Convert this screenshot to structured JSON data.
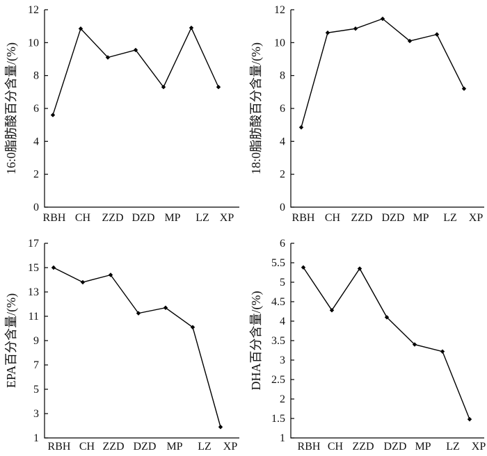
{
  "chart_data": [
    {
      "type": "line",
      "categories": [
        "RBH",
        "CH",
        "ZZD",
        "DZD",
        "MP",
        "LZ",
        "XP"
      ],
      "values": [
        5.6,
        10.85,
        9.1,
        9.55,
        7.3,
        10.9,
        7.3
      ],
      "ylabel": "16:0脂肪酸百分含量/(%)",
      "ylim": [
        0,
        12
      ],
      "yticks": [
        "0",
        "2",
        "4",
        "6",
        "8",
        "10",
        "12"
      ],
      "legend": "none",
      "grid": false
    },
    {
      "type": "line",
      "categories": [
        "RBH",
        "CH",
        "ZZD",
        "DZD",
        "MP",
        "LZ",
        "XP"
      ],
      "values": [
        4.85,
        10.6,
        10.85,
        11.45,
        10.1,
        10.5,
        7.2
      ],
      "ylabel": "18:0脂肪酸百分含量/(%)",
      "ylim": [
        0,
        12
      ],
      "yticks": [
        "0",
        "2",
        "4",
        "6",
        "8",
        "10",
        "12"
      ],
      "legend": "none",
      "grid": false
    },
    {
      "type": "line",
      "categories": [
        "RBH",
        "CH",
        "ZZD",
        "DZD",
        "MP",
        "LZ",
        "XP"
      ],
      "values": [
        15.0,
        13.8,
        14.4,
        11.25,
        11.7,
        10.1,
        1.9
      ],
      "ylabel": "EPA百分含量/(%)",
      "ylim": [
        1,
        17
      ],
      "yticks": [
        "1",
        "3",
        "5",
        "7",
        "9",
        "11",
        "13",
        "15",
        "17"
      ],
      "legend": "none",
      "grid": false
    },
    {
      "type": "line",
      "categories": [
        "RBH",
        "CH",
        "ZZD",
        "DZD",
        "MP",
        "LZ",
        "XP"
      ],
      "values": [
        5.38,
        4.28,
        5.35,
        4.1,
        3.4,
        3.22,
        1.48
      ],
      "ylabel": "DHA百分含量/(%)",
      "ylim": [
        1,
        6
      ],
      "yticks": [
        "1",
        "1.5",
        "2",
        "2.5",
        "3",
        "3.5",
        "4",
        "4.5",
        "5",
        "5.5",
        "6"
      ],
      "legend": "none",
      "grid": false
    }
  ]
}
